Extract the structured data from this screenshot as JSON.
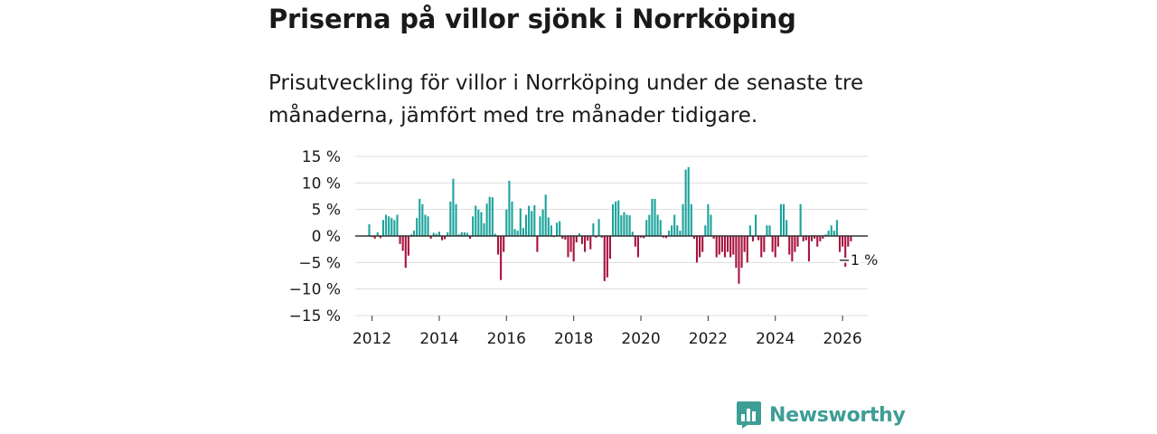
{
  "header": {
    "title": "Priserna på villor sjönk i Norrköping",
    "subtitle": "Prisutveckling för villor i Norrköping under de senaste tre månaderna, jämfört med tre månader tidigare."
  },
  "brand": {
    "name": "Newsworthy"
  },
  "colors": {
    "positive": "#1ba39c",
    "negative": "#a8123e",
    "grid": "#dddddd",
    "zero": "#333333",
    "text": "#1a1a1a",
    "brand": "#3d9e95"
  },
  "chart_data": {
    "type": "bar",
    "title": "Priserna på villor sjönk i Norrköping",
    "xlabel": "",
    "ylabel": "",
    "ylim": [
      -15,
      15
    ],
    "yticks": [
      15,
      10,
      5,
      0,
      -5,
      -10,
      -15
    ],
    "ytick_labels": [
      "15 %",
      "10 %",
      "5 %",
      "0 %",
      "−5 %",
      "−10 %",
      "−15 %"
    ],
    "xlim": [
      2011.5,
      2026.75
    ],
    "xticks": [
      2012,
      2014,
      2016,
      2018,
      2020,
      2022,
      2024,
      2026
    ],
    "xtick_labels": [
      "2012",
      "2014",
      "2016",
      "2018",
      "2020",
      "2022",
      "2024",
      "2026"
    ],
    "start": {
      "year": 2011,
      "month": 12
    },
    "values": [
      2.2,
      -0.2,
      -0.5,
      0.7,
      -0.4,
      3.0,
      4.0,
      3.7,
      3.4,
      3.0,
      4.0,
      -1.5,
      -2.8,
      -6.0,
      -3.7,
      0.3,
      1.0,
      3.4,
      7.0,
      6.0,
      4.0,
      3.7,
      -0.5,
      0.6,
      0.4,
      0.8,
      -0.8,
      -0.6,
      0.7,
      6.5,
      10.8,
      6.0,
      0.3,
      0.7,
      0.7,
      0.6,
      -0.5,
      3.7,
      5.7,
      5.0,
      4.5,
      2.4,
      6.1,
      7.4,
      7.3,
      0.4,
      -3.5,
      -8.3,
      -3.0,
      5.0,
      10.4,
      6.5,
      1.3,
      1.0,
      5.2,
      1.5,
      4.0,
      5.7,
      4.7,
      5.8,
      -3.0,
      3.7,
      5.0,
      7.8,
      3.5,
      2.0,
      -0.2,
      2.5,
      2.8,
      -0.5,
      -0.7,
      -4.0,
      -3.0,
      -4.8,
      -1.2,
      0.5,
      -1.5,
      -3.0,
      -0.9,
      -2.5,
      2.4,
      -0.3,
      3.2,
      -0.3,
      -8.5,
      -7.8,
      -4.3,
      6.0,
      6.5,
      6.7,
      3.9,
      4.5,
      4.0,
      3.9,
      0.8,
      -2.0,
      -4.0,
      -0.3,
      -0.4,
      3.0,
      4.0,
      7.0,
      7.0,
      4.0,
      3.0,
      -0.3,
      -0.4,
      1.0,
      2.0,
      4.0,
      2.0,
      1.0,
      6.0,
      12.5,
      13.0,
      6.0,
      -0.5,
      -5.0,
      -4.0,
      -3.0,
      2.0,
      6.0,
      4.0,
      -0.5,
      -4.0,
      -3.5,
      -3.0,
      -4.0,
      -3.0,
      -4.0,
      -3.5,
      -6.0,
      -9.0,
      -6.0,
      -3.0,
      -5.0,
      2.0,
      -1.0,
      4.0,
      -0.8,
      -4.0,
      -3.0,
      2.0,
      2.0,
      -3.0,
      -4.0,
      -2.0,
      6.0,
      6.0,
      3.0,
      -3.5,
      -4.8,
      -3.0,
      -2.0,
      6.0,
      -1.0,
      -0.8,
      -4.8,
      -1.0,
      -0.5,
      -2.0,
      -1.0,
      -0.5,
      0.3,
      1.0,
      2.0,
      1.0,
      3.0,
      -3.0,
      -2.0,
      -5.8,
      -2.0,
      -1.0
    ],
    "annotation": {
      "text": "−1 %",
      "value": -1
    }
  }
}
